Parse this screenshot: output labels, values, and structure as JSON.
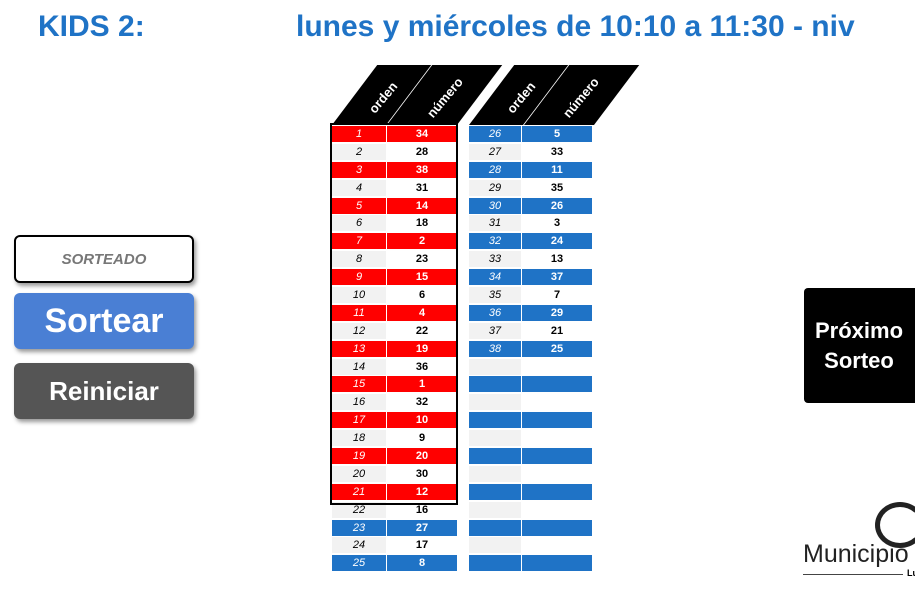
{
  "title": {
    "left": "KIDS 2:",
    "right": "lunes y miércoles de 10:10 a 11:30 - niv"
  },
  "headers": {
    "orden": "orden",
    "numero": "número"
  },
  "buttons": {
    "sorteado": "SORTEADO",
    "sortear": "Sortear",
    "reiniciar": "Reiniciar"
  },
  "proximo": {
    "line1": "Próximo",
    "line2": "Sorteo"
  },
  "logo": {
    "text": "Municipio",
    "sub": "Lu"
  },
  "colors": {
    "red": "#ff0000",
    "blue": "#1f73c6"
  },
  "left_table": [
    {
      "orden": "1",
      "numero": "34",
      "color": "red"
    },
    {
      "orden": "2",
      "numero": "28",
      "color": "white"
    },
    {
      "orden": "3",
      "numero": "38",
      "color": "red"
    },
    {
      "orden": "4",
      "numero": "31",
      "color": "white"
    },
    {
      "orden": "5",
      "numero": "14",
      "color": "red"
    },
    {
      "orden": "6",
      "numero": "18",
      "color": "white"
    },
    {
      "orden": "7",
      "numero": "2",
      "color": "red"
    },
    {
      "orden": "8",
      "numero": "23",
      "color": "white"
    },
    {
      "orden": "9",
      "numero": "15",
      "color": "red"
    },
    {
      "orden": "10",
      "numero": "6",
      "color": "white"
    },
    {
      "orden": "11",
      "numero": "4",
      "color": "red"
    },
    {
      "orden": "12",
      "numero": "22",
      "color": "white"
    },
    {
      "orden": "13",
      "numero": "19",
      "color": "red"
    },
    {
      "orden": "14",
      "numero": "36",
      "color": "white"
    },
    {
      "orden": "15",
      "numero": "1",
      "color": "red"
    },
    {
      "orden": "16",
      "numero": "32",
      "color": "white"
    },
    {
      "orden": "17",
      "numero": "10",
      "color": "red"
    },
    {
      "orden": "18",
      "numero": "9",
      "color": "white"
    },
    {
      "orden": "19",
      "numero": "20",
      "color": "red"
    },
    {
      "orden": "20",
      "numero": "30",
      "color": "white"
    },
    {
      "orden": "21",
      "numero": "12",
      "color": "red"
    },
    {
      "orden": "22",
      "numero": "16",
      "color": "white"
    },
    {
      "orden": "23",
      "numero": "27",
      "color": "blue"
    },
    {
      "orden": "24",
      "numero": "17",
      "color": "white"
    },
    {
      "orden": "25",
      "numero": "8",
      "color": "blue"
    }
  ],
  "right_table": [
    {
      "orden": "26",
      "numero": "5",
      "color": "blue"
    },
    {
      "orden": "27",
      "numero": "33",
      "color": "white"
    },
    {
      "orden": "28",
      "numero": "11",
      "color": "blue"
    },
    {
      "orden": "29",
      "numero": "35",
      "color": "white"
    },
    {
      "orden": "30",
      "numero": "26",
      "color": "blue"
    },
    {
      "orden": "31",
      "numero": "3",
      "color": "white"
    },
    {
      "orden": "32",
      "numero": "24",
      "color": "blue"
    },
    {
      "orden": "33",
      "numero": "13",
      "color": "white"
    },
    {
      "orden": "34",
      "numero": "37",
      "color": "blue"
    },
    {
      "orden": "35",
      "numero": "7",
      "color": "white"
    },
    {
      "orden": "36",
      "numero": "29",
      "color": "blue"
    },
    {
      "orden": "37",
      "numero": "21",
      "color": "white"
    },
    {
      "orden": "38",
      "numero": "25",
      "color": "blue"
    },
    {
      "orden": "",
      "numero": "",
      "color": "white"
    },
    {
      "orden": "",
      "numero": "",
      "color": "blue"
    },
    {
      "orden": "",
      "numero": "",
      "color": "white"
    },
    {
      "orden": "",
      "numero": "",
      "color": "blue"
    },
    {
      "orden": "",
      "numero": "",
      "color": "white"
    },
    {
      "orden": "",
      "numero": "",
      "color": "blue"
    },
    {
      "orden": "",
      "numero": "",
      "color": "white"
    },
    {
      "orden": "",
      "numero": "",
      "color": "blue"
    },
    {
      "orden": "",
      "numero": "",
      "color": "white"
    },
    {
      "orden": "",
      "numero": "",
      "color": "blue"
    },
    {
      "orden": "",
      "numero": "",
      "color": "white"
    },
    {
      "orden": "",
      "numero": "",
      "color": "blue"
    }
  ]
}
